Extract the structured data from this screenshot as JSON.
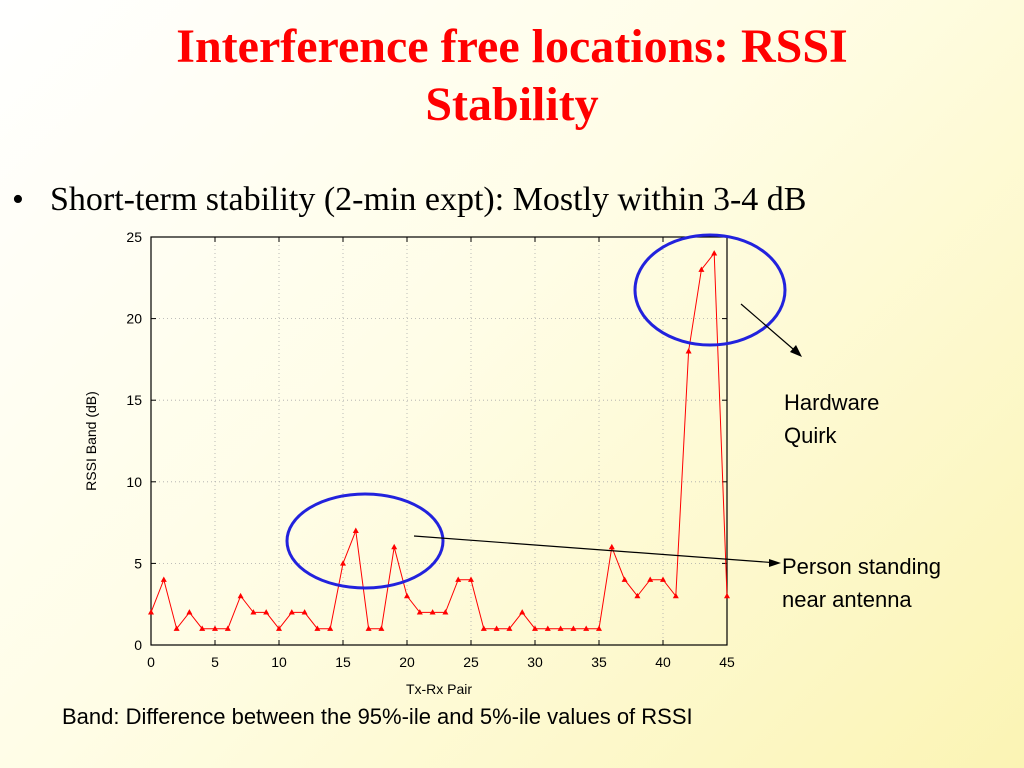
{
  "slide": {
    "title_line1": "Interference free locations: RSSI",
    "title_line2": "Stability",
    "bullet": "Short-term stability (2-min expt): Mostly within 3-4 dB",
    "caption": "Band: Difference between the 95%-ile and 5%-ile values of RSSI",
    "annotations": {
      "hardware_line1": "Hardware",
      "hardware_line2": "Quirk",
      "person_line1": "Person standing",
      "person_line2": "near antenna"
    }
  },
  "chart_data": {
    "type": "line",
    "xlabel": "Tx-Rx Pair",
    "ylabel": "RSSI Band (dB)",
    "xlim": [
      0,
      45
    ],
    "ylim": [
      0,
      25
    ],
    "xticks": [
      0,
      5,
      10,
      15,
      20,
      25,
      30,
      35,
      40,
      45
    ],
    "yticks": [
      0,
      5,
      10,
      15,
      20,
      25
    ],
    "grid": true,
    "marker": "triangle",
    "series_color": "#ff0000",
    "highlight_color": "#2222dd",
    "x": [
      0,
      1,
      2,
      3,
      4,
      5,
      6,
      7,
      8,
      9,
      10,
      11,
      12,
      13,
      14,
      15,
      16,
      17,
      18,
      19,
      20,
      21,
      22,
      23,
      24,
      25,
      26,
      27,
      28,
      29,
      30,
      31,
      32,
      33,
      34,
      35,
      36,
      37,
      38,
      39,
      40,
      41,
      42,
      43,
      44,
      45
    ],
    "y": [
      2,
      4,
      1,
      2,
      1,
      1,
      1,
      3,
      2,
      2,
      1,
      2,
      2,
      1,
      1,
      5,
      7,
      1,
      1,
      6,
      3,
      2,
      2,
      2,
      4,
      4,
      1,
      1,
      1,
      2,
      1,
      1,
      1,
      1,
      1,
      1,
      6,
      4,
      3,
      4,
      4,
      3,
      18,
      23,
      24,
      3
    ]
  }
}
